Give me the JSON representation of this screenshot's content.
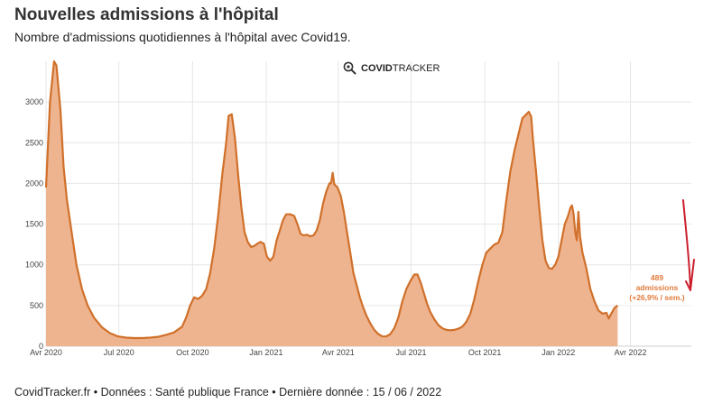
{
  "header": {
    "title": "Nouvelles admissions à l'hôpital",
    "subtitle": "Nombre d'admissions quotidiennes à l'hôpital avec Covid19."
  },
  "brand": {
    "bold": "COVID",
    "light": "TRACKER",
    "icon": "magnifier-virus-icon"
  },
  "footer": {
    "text": "CovidTracker.fr • Données : Santé publique France • Dernière donnée : 15 / 06 / 2022"
  },
  "colors": {
    "line": "#d0702a",
    "fill": "#eeb490",
    "grid": "#e6e6e6",
    "annotation": "#e07b3a",
    "arrow": "#cc1f2e"
  },
  "annotation": {
    "line1": "489",
    "line2": "admissions",
    "line3": "(+26,9% / sem.)"
  },
  "chart_data": {
    "type": "area",
    "xlabel": "",
    "ylabel": "",
    "ylim": [
      0,
      3500
    ],
    "yticks": [
      0,
      500,
      1000,
      1500,
      2000,
      2500,
      3000
    ],
    "xlim": [
      0,
      806
    ],
    "xticks": [
      {
        "label": "Avr 2020",
        "day": 0
      },
      {
        "label": "Jul 2020",
        "day": 91
      },
      {
        "label": "Oct 2020",
        "day": 183
      },
      {
        "label": "Jan 2021",
        "day": 275
      },
      {
        "label": "Avr 2021",
        "day": 365
      },
      {
        "label": "Jul 2021",
        "day": 456
      },
      {
        "label": "Oct 2021",
        "day": 548
      },
      {
        "label": "Jan 2022",
        "day": 640
      },
      {
        "label": "Avr 2022",
        "day": 730
      }
    ],
    "grid": true,
    "series": [
      {
        "points": [
          [
            0,
            1950
          ],
          [
            5,
            3000
          ],
          [
            10,
            3500
          ],
          [
            13,
            3450
          ],
          [
            18,
            2900
          ],
          [
            22,
            2200
          ],
          [
            26,
            1800
          ],
          [
            32,
            1400
          ],
          [
            38,
            1000
          ],
          [
            45,
            700
          ],
          [
            52,
            500
          ],
          [
            60,
            350
          ],
          [
            70,
            230
          ],
          [
            80,
            160
          ],
          [
            90,
            120
          ],
          [
            100,
            105
          ],
          [
            110,
            100
          ],
          [
            120,
            100
          ],
          [
            130,
            105
          ],
          [
            140,
            115
          ],
          [
            150,
            140
          ],
          [
            160,
            170
          ],
          [
            170,
            240
          ],
          [
            175,
            350
          ],
          [
            180,
            500
          ],
          [
            185,
            600
          ],
          [
            190,
            580
          ],
          [
            195,
            620
          ],
          [
            200,
            700
          ],
          [
            205,
            900
          ],
          [
            210,
            1200
          ],
          [
            215,
            1600
          ],
          [
            220,
            2100
          ],
          [
            225,
            2500
          ],
          [
            228,
            2830
          ],
          [
            232,
            2850
          ],
          [
            236,
            2550
          ],
          [
            240,
            2100
          ],
          [
            244,
            1700
          ],
          [
            248,
            1400
          ],
          [
            252,
            1280
          ],
          [
            256,
            1220
          ],
          [
            260,
            1230
          ],
          [
            264,
            1260
          ],
          [
            268,
            1280
          ],
          [
            272,
            1260
          ],
          [
            276,
            1100
          ],
          [
            280,
            1050
          ],
          [
            284,
            1100
          ],
          [
            288,
            1300
          ],
          [
            292,
            1420
          ],
          [
            296,
            1550
          ],
          [
            300,
            1620
          ],
          [
            305,
            1620
          ],
          [
            310,
            1600
          ],
          [
            314,
            1500
          ],
          [
            318,
            1380
          ],
          [
            322,
            1360
          ],
          [
            326,
            1370
          ],
          [
            330,
            1350
          ],
          [
            334,
            1360
          ],
          [
            338,
            1420
          ],
          [
            342,
            1550
          ],
          [
            346,
            1750
          ],
          [
            350,
            1900
          ],
          [
            354,
            2000
          ],
          [
            356,
            2000
          ],
          [
            358,
            2130
          ],
          [
            360,
            1990
          ],
          [
            364,
            1950
          ],
          [
            368,
            1850
          ],
          [
            372,
            1650
          ],
          [
            376,
            1400
          ],
          [
            380,
            1150
          ],
          [
            384,
            900
          ],
          [
            388,
            750
          ],
          [
            392,
            600
          ],
          [
            396,
            480
          ],
          [
            400,
            380
          ],
          [
            405,
            280
          ],
          [
            410,
            200
          ],
          [
            415,
            150
          ],
          [
            420,
            120
          ],
          [
            425,
            120
          ],
          [
            430,
            150
          ],
          [
            435,
            220
          ],
          [
            440,
            350
          ],
          [
            445,
            550
          ],
          [
            450,
            700
          ],
          [
            455,
            800
          ],
          [
            460,
            880
          ],
          [
            464,
            880
          ],
          [
            468,
            780
          ],
          [
            472,
            650
          ],
          [
            476,
            520
          ],
          [
            480,
            420
          ],
          [
            485,
            330
          ],
          [
            490,
            260
          ],
          [
            495,
            220
          ],
          [
            500,
            200
          ],
          [
            505,
            195
          ],
          [
            510,
            200
          ],
          [
            515,
            215
          ],
          [
            520,
            240
          ],
          [
            525,
            300
          ],
          [
            530,
            400
          ],
          [
            535,
            580
          ],
          [
            540,
            800
          ],
          [
            545,
            1000
          ],
          [
            550,
            1150
          ],
          [
            555,
            1200
          ],
          [
            560,
            1250
          ],
          [
            565,
            1270
          ],
          [
            570,
            1400
          ],
          [
            575,
            1800
          ],
          [
            580,
            2150
          ],
          [
            585,
            2400
          ],
          [
            590,
            2600
          ],
          [
            595,
            2800
          ],
          [
            600,
            2850
          ],
          [
            603,
            2880
          ],
          [
            606,
            2820
          ],
          [
            608,
            2560
          ],
          [
            612,
            2150
          ],
          [
            616,
            1700
          ],
          [
            620,
            1300
          ],
          [
            624,
            1050
          ],
          [
            628,
            960
          ],
          [
            632,
            950
          ],
          [
            636,
            1000
          ],
          [
            640,
            1100
          ],
          [
            644,
            1300
          ],
          [
            648,
            1500
          ],
          [
            652,
            1600
          ],
          [
            655,
            1700
          ],
          [
            657,
            1730
          ],
          [
            659,
            1620
          ],
          [
            661,
            1400
          ],
          [
            663,
            1300
          ],
          [
            665,
            1650
          ],
          [
            667,
            1350
          ],
          [
            670,
            1150
          ],
          [
            675,
            950
          ],
          [
            680,
            700
          ],
          [
            685,
            550
          ],
          [
            690,
            440
          ],
          [
            695,
            400
          ],
          [
            700,
            410
          ],
          [
            703,
            340
          ],
          [
            706,
            400
          ],
          [
            710,
            470
          ],
          [
            714,
            500
          ]
        ]
      }
    ]
  }
}
